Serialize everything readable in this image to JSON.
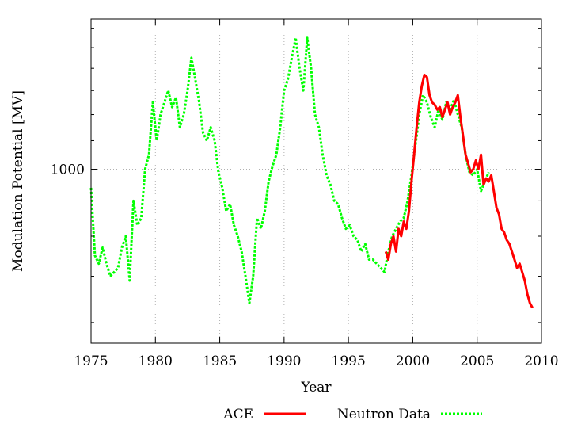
{
  "chart_data": {
    "type": "line",
    "title": "",
    "xlabel": "Year",
    "ylabel": "Modulation Potential [MV]",
    "xlim": [
      1975,
      2010
    ],
    "ylim": [
      560,
      1650
    ],
    "y_scale": "log",
    "grid": true,
    "legend_position": "bottom",
    "x_ticks": [
      1975,
      1980,
      1985,
      1990,
      1995,
      2000,
      2005,
      2010
    ],
    "x_tick_labels": [
      "1975",
      "1980",
      "1985",
      "1990",
      "1995",
      "2000",
      "2005",
      "2010"
    ],
    "y_major_ticks": [
      1000
    ],
    "y_major_tick_labels": [
      "1000"
    ],
    "y_minor_ticks": [
      600,
      700,
      800,
      900,
      1100,
      1200,
      1300,
      1400,
      1500,
      1600
    ],
    "series": [
      {
        "name": "ACE",
        "color": "#ff0000",
        "style": "solid",
        "x": [
          1997.9,
          1998.1,
          1998.3,
          1998.5,
          1998.7,
          1998.9,
          1999.1,
          1999.3,
          1999.5,
          1999.7,
          1999.9,
          2000.1,
          2000.3,
          2000.5,
          2000.7,
          2000.9,
          2001.1,
          2001.3,
          2001.5,
          2001.7,
          2001.9,
          2002.1,
          2002.3,
          2002.5,
          2002.7,
          2002.9,
          2003.1,
          2003.3,
          2003.5,
          2003.7,
          2003.9,
          2004.1,
          2004.3,
          2004.5,
          2004.7,
          2004.9,
          2005.1,
          2005.3,
          2005.5,
          2005.7,
          2005.9,
          2006.1,
          2006.3,
          2006.5,
          2006.7,
          2006.9,
          2007.1,
          2007.3,
          2007.5,
          2007.7,
          2007.9,
          2008.1,
          2008.3,
          2008.5,
          2008.7,
          2008.9,
          2009.1,
          2009.3
        ],
        "y": [
          760,
          740,
          780,
          800,
          760,
          820,
          800,
          840,
          820,
          870,
          960,
          1050,
          1150,
          1250,
          1320,
          1370,
          1360,
          1280,
          1250,
          1240,
          1220,
          1230,
          1190,
          1220,
          1250,
          1200,
          1230,
          1250,
          1280,
          1190,
          1120,
          1050,
          1020,
          990,
          1000,
          1030,
          1000,
          1050,
          950,
          970,
          960,
          980,
          930,
          880,
          860,
          820,
          810,
          790,
          780,
          760,
          740,
          720,
          730,
          710,
          690,
          660,
          640,
          630
        ]
      },
      {
        "name": "Neutron Data",
        "color": "#00ff00",
        "style": "dotted",
        "x": [
          1975.0,
          1975.3,
          1975.6,
          1975.9,
          1976.2,
          1976.5,
          1976.8,
          1977.1,
          1977.4,
          1977.7,
          1978.0,
          1978.3,
          1978.6,
          1978.9,
          1979.2,
          1979.5,
          1979.8,
          1980.1,
          1980.4,
          1980.7,
          1981.0,
          1981.3,
          1981.6,
          1981.9,
          1982.2,
          1982.5,
          1982.8,
          1983.1,
          1983.4,
          1983.7,
          1984.0,
          1984.3,
          1984.6,
          1984.9,
          1985.2,
          1985.5,
          1985.8,
          1986.1,
          1986.4,
          1986.7,
          1987.0,
          1987.3,
          1987.6,
          1987.9,
          1988.2,
          1988.5,
          1988.8,
          1989.1,
          1989.4,
          1989.7,
          1990.0,
          1990.3,
          1990.6,
          1990.9,
          1991.2,
          1991.5,
          1991.8,
          1992.1,
          1992.4,
          1992.7,
          1993.0,
          1993.3,
          1993.6,
          1993.9,
          1994.2,
          1994.5,
          1994.8,
          1995.1,
          1995.4,
          1995.7,
          1996.0,
          1996.3,
          1996.6,
          1996.9,
          1997.2,
          1997.5,
          1997.8,
          1998.1,
          1998.4,
          1998.7,
          1999.0,
          1999.3,
          1999.6,
          1999.9,
          2000.2,
          2000.5,
          2000.8,
          2001.1,
          2001.4,
          2001.7,
          2002.0,
          2002.3,
          2002.6,
          2002.9,
          2003.2,
          2003.5,
          2003.8,
          2004.1,
          2004.4,
          2004.7,
          2005.0,
          2005.3,
          2005.6,
          2005.9
        ],
        "y": [
          940,
          750,
          730,
          770,
          730,
          700,
          710,
          720,
          770,
          800,
          690,
          900,
          830,
          850,
          1000,
          1050,
          1250,
          1100,
          1200,
          1250,
          1300,
          1230,
          1270,
          1150,
          1200,
          1300,
          1450,
          1350,
          1250,
          1130,
          1100,
          1150,
          1100,
          990,
          940,
          870,
          890,
          830,
          800,
          760,
          700,
          640,
          700,
          850,
          820,
          870,
          960,
          1010,
          1050,
          1150,
          1300,
          1350,
          1450,
          1550,
          1400,
          1300,
          1550,
          1400,
          1200,
          1150,
          1050,
          980,
          950,
          900,
          890,
          850,
          820,
          830,
          800,
          790,
          760,
          780,
          740,
          740,
          730,
          720,
          710,
          760,
          800,
          820,
          840,
          850,
          900,
          980,
          1080,
          1200,
          1280,
          1250,
          1190,
          1150,
          1220,
          1180,
          1250,
          1220,
          1260,
          1200,
          1150,
          1050,
          990,
          980,
          1000,
          930,
          960,
          990
        ]
      }
    ]
  }
}
